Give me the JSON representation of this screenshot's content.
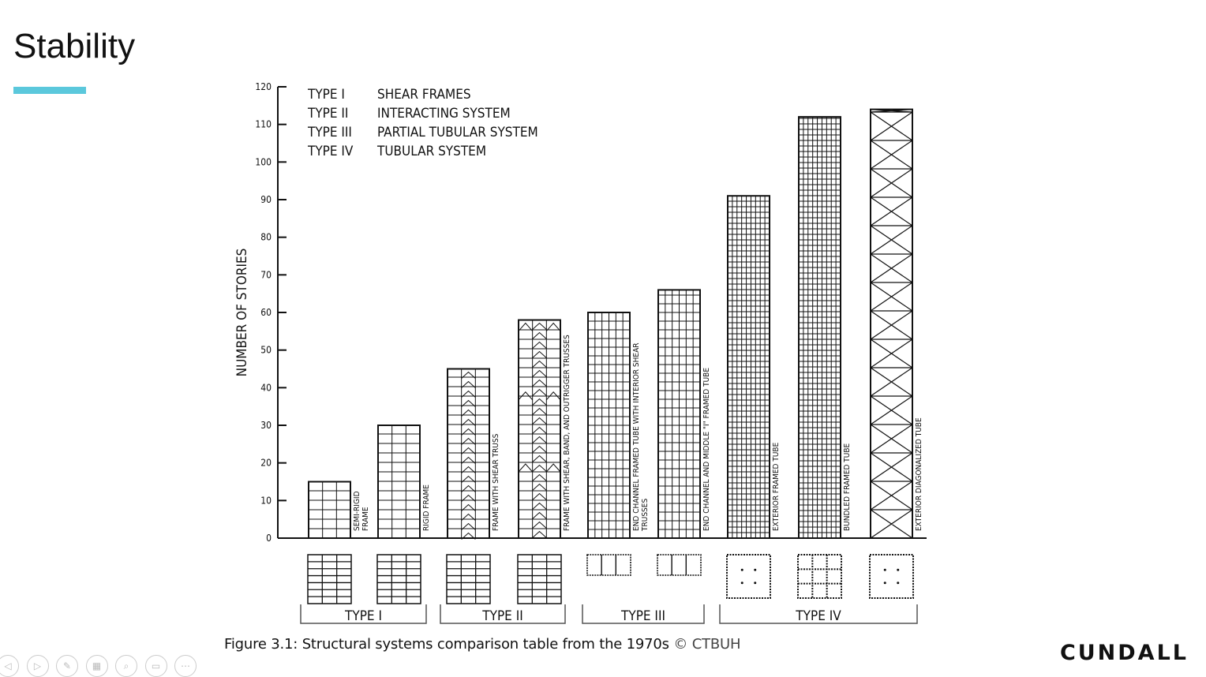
{
  "slide": {
    "title": "Stability",
    "accent_color": "#5bc8dc",
    "caption_main": "Figure 3.1: Structural systems comparison table from the 1970s ",
    "caption_copy": "© CTBUH",
    "logo": "CUNDALL"
  },
  "controls": [
    {
      "icon": "previous-icon",
      "glyph": "◁"
    },
    {
      "icon": "next-icon",
      "glyph": "▷"
    },
    {
      "icon": "pen-icon",
      "glyph": "✎"
    },
    {
      "icon": "slides-grid-icon",
      "glyph": "▦"
    },
    {
      "icon": "zoom-icon",
      "glyph": "⌕"
    },
    {
      "icon": "subtitles-icon",
      "glyph": "▭"
    },
    {
      "icon": "more-icon",
      "glyph": "⋯"
    }
  ],
  "chart_data": {
    "type": "bar",
    "ylabel": "NUMBER OF STORIES",
    "ylim": [
      0,
      120
    ],
    "yticks": [
      0,
      10,
      20,
      30,
      40,
      50,
      60,
      70,
      80,
      90,
      100,
      110,
      120
    ],
    "legend": [
      {
        "type": "TYPE I",
        "name": "SHEAR FRAMES"
      },
      {
        "type": "TYPE II",
        "name": "INTERACTING SYSTEM"
      },
      {
        "type": "TYPE III",
        "name": "PARTIAL TUBULAR SYSTEM"
      },
      {
        "type": "TYPE IV",
        "name": "TUBULAR SYSTEM"
      }
    ],
    "bars": [
      {
        "label": "SEMI-RIGID FRAME",
        "label_lines": [
          "SEMI-RIGID",
          "FRAME"
        ],
        "value": 15,
        "pattern": "rigid",
        "plan": "grid"
      },
      {
        "label": "RIGID FRAME",
        "label_lines": [
          "RIGID FRAME"
        ],
        "value": 30,
        "pattern": "rigid",
        "plan": "grid"
      },
      {
        "label": "FRAME WITH SHEAR TRUSS",
        "label_lines": [
          "FRAME  WITH SHEAR TRUSS"
        ],
        "value": 45,
        "pattern": "truss",
        "plan": "grid"
      },
      {
        "label": "FRAME WITH SHEAR, BAND, AND OUTRIGGER TRUSSES",
        "label_lines": [
          "FRAME WITH SHEAR, BAND, AND OUTRIGGER TRUSSES"
        ],
        "value": 58,
        "pattern": "outrigger",
        "plan": "grid"
      },
      {
        "label": "END CHANNEL FRAMED TUBE WITH INTERIOR SHEAR TRUSSES",
        "label_lines": [
          "END CHANNEL  FRAMED TUBE WITH  INTERIOR SHEAR",
          "TRUSSES"
        ],
        "value": 60,
        "pattern": "tube",
        "plan": "channel"
      },
      {
        "label": "END CHANNEL AND MIDDLE \"I\" FRAMED TUBE",
        "label_lines": [
          "END CHANNEL  AND MIDDLE \"I\" FRAMED TUBE"
        ],
        "value": 66,
        "pattern": "tube",
        "plan": "channel"
      },
      {
        "label": "EXTERIOR FRAMED TUBE",
        "label_lines": [
          "EXTERIOR  FRAMED TUBE"
        ],
        "value": 91,
        "pattern": "fine",
        "plan": "dots"
      },
      {
        "label": "BUNDLED FRAMED TUBE",
        "label_lines": [
          "BUNDLED FRAMED TUBE"
        ],
        "value": 112,
        "pattern": "fine",
        "plan": "bundled"
      },
      {
        "label": "EXTERIOR DIAGONALIZED TUBE",
        "label_lines": [
          "EXTERIOR  DIAGONALIZED  TUBE"
        ],
        "value": 114,
        "pattern": "diagonal",
        "plan": "dots"
      }
    ],
    "groups": [
      {
        "label": "TYPE I"
      },
      {
        "label": "TYPE II"
      },
      {
        "label": "TYPE III"
      },
      {
        "label": "TYPE IV"
      }
    ]
  }
}
